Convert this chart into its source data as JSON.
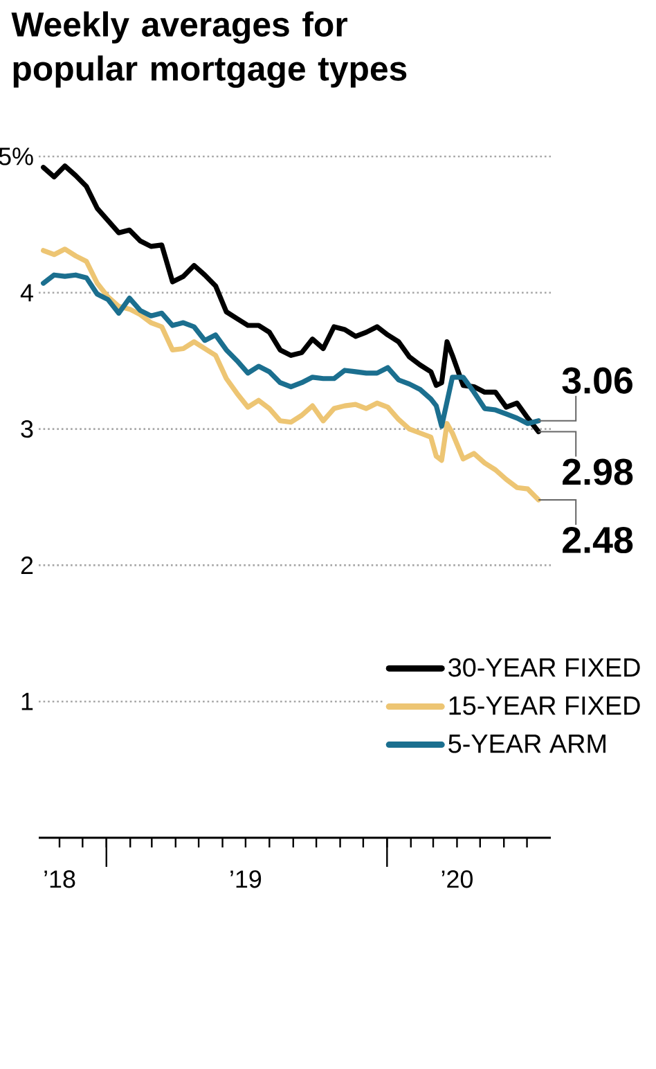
{
  "chart_data": {
    "type": "line",
    "title": "Weekly averages for popular mortgage types",
    "x": [
      "2018-10-11",
      "2018-10-25",
      "2018-11-08",
      "2018-11-22",
      "2018-12-06",
      "2018-12-20",
      "2019-01-03",
      "2019-01-17",
      "2019-01-31",
      "2019-02-14",
      "2019-02-28",
      "2019-03-14",
      "2019-03-28",
      "2019-04-11",
      "2019-04-25",
      "2019-05-09",
      "2019-05-23",
      "2019-06-06",
      "2019-06-20",
      "2019-07-04",
      "2019-07-18",
      "2019-08-01",
      "2019-08-15",
      "2019-08-29",
      "2019-09-12",
      "2019-09-26",
      "2019-10-10",
      "2019-10-24",
      "2019-11-07",
      "2019-11-21",
      "2019-12-05",
      "2019-12-19",
      "2020-01-02",
      "2020-01-16",
      "2020-01-30",
      "2020-02-13",
      "2020-02-27",
      "2020-03-05",
      "2020-03-12",
      "2020-03-19",
      "2020-03-26",
      "2020-04-09",
      "2020-04-23",
      "2020-05-07",
      "2020-05-21",
      "2020-06-04",
      "2020-06-18",
      "2020-07-02",
      "2020-07-16"
    ],
    "series": [
      {
        "name": "30-YEAR FIXED",
        "color": "#000000",
        "values": [
          4.92,
          4.85,
          4.93,
          4.86,
          4.78,
          4.62,
          4.53,
          4.44,
          4.46,
          4.38,
          4.34,
          4.35,
          4.08,
          4.12,
          4.2,
          4.13,
          4.05,
          3.86,
          3.81,
          3.76,
          3.76,
          3.71,
          3.58,
          3.54,
          3.56,
          3.66,
          3.59,
          3.75,
          3.73,
          3.68,
          3.71,
          3.75,
          3.69,
          3.64,
          3.53,
          3.47,
          3.42,
          3.32,
          3.34,
          3.64,
          3.54,
          3.32,
          3.31,
          3.27,
          3.27,
          3.16,
          3.19,
          3.08,
          2.98
        ],
        "value_labels": [
          null,
          null,
          null,
          null,
          null,
          null,
          null,
          null,
          null,
          null,
          null,
          null,
          null,
          null,
          null,
          null,
          null,
          null,
          null,
          null,
          null,
          null,
          null,
          null,
          null,
          null,
          null,
          null,
          null,
          null,
          null,
          null,
          null,
          null,
          null,
          null,
          null,
          null,
          null,
          null,
          null,
          null,
          null,
          null,
          null,
          null,
          null,
          null,
          "2.98"
        ]
      },
      {
        "name": "15-YEAR FIXED",
        "color": "#edc573",
        "values": [
          4.31,
          4.28,
          4.32,
          4.27,
          4.23,
          4.07,
          3.97,
          3.9,
          3.88,
          3.84,
          3.78,
          3.75,
          3.58,
          3.59,
          3.64,
          3.59,
          3.54,
          3.37,
          3.26,
          3.16,
          3.21,
          3.15,
          3.06,
          3.05,
          3.1,
          3.17,
          3.06,
          3.15,
          3.17,
          3.18,
          3.15,
          3.19,
          3.16,
          3.07,
          3.0,
          2.97,
          2.94,
          2.8,
          2.77,
          3.04,
          2.97,
          2.78,
          2.82,
          2.75,
          2.7,
          2.63,
          2.57,
          2.56,
          2.48
        ],
        "value_labels": [
          null,
          null,
          null,
          null,
          null,
          null,
          null,
          null,
          null,
          null,
          null,
          null,
          null,
          null,
          null,
          null,
          null,
          null,
          null,
          null,
          null,
          null,
          null,
          null,
          null,
          null,
          null,
          null,
          null,
          null,
          null,
          null,
          null,
          null,
          null,
          null,
          null,
          null,
          null,
          null,
          null,
          null,
          null,
          null,
          null,
          null,
          null,
          null,
          "2.48"
        ]
      },
      {
        "name": "5-YEAR ARM",
        "color": "#1b6f8f",
        "values": [
          4.07,
          4.13,
          4.12,
          4.13,
          4.11,
          3.99,
          3.95,
          3.85,
          3.96,
          3.87,
          3.83,
          3.85,
          3.76,
          3.78,
          3.75,
          3.65,
          3.69,
          3.58,
          3.5,
          3.41,
          3.46,
          3.42,
          3.34,
          3.31,
          3.34,
          3.38,
          3.37,
          3.37,
          3.43,
          3.42,
          3.41,
          3.41,
          3.45,
          3.36,
          3.33,
          3.29,
          3.22,
          3.17,
          3.02,
          3.2,
          3.38,
          3.38,
          3.27,
          3.15,
          3.14,
          3.11,
          3.08,
          3.04,
          3.06
        ],
        "value_labels": [
          null,
          null,
          null,
          null,
          null,
          null,
          null,
          null,
          null,
          null,
          null,
          null,
          null,
          null,
          null,
          null,
          null,
          null,
          null,
          null,
          null,
          null,
          null,
          null,
          null,
          null,
          null,
          null,
          null,
          null,
          null,
          null,
          null,
          null,
          null,
          null,
          null,
          null,
          null,
          null,
          null,
          null,
          null,
          null,
          null,
          null,
          null,
          null,
          "3.06"
        ]
      }
    ],
    "xlim": [
      "2018-10-05",
      "2020-08-01"
    ],
    "xticks": [
      {
        "value": "2018-11-01",
        "label": "’18"
      },
      {
        "value": "2018-12-01",
        "label": null
      },
      {
        "value": "2019-01-01",
        "label": null
      },
      {
        "value": "2019-02-01",
        "label": null
      },
      {
        "value": "2019-03-01",
        "label": null
      },
      {
        "value": "2019-04-01",
        "label": null
      },
      {
        "value": "2019-05-01",
        "label": null
      },
      {
        "value": "2019-06-01",
        "label": null
      },
      {
        "value": "2019-07-01",
        "label": "’19"
      },
      {
        "value": "2019-08-01",
        "label": null
      },
      {
        "value": "2019-09-01",
        "label": null
      },
      {
        "value": "2019-10-01",
        "label": null
      },
      {
        "value": "2019-11-01",
        "label": null
      },
      {
        "value": "2019-12-01",
        "label": null
      },
      {
        "value": "2020-01-01",
        "label": null
      },
      {
        "value": "2020-02-01",
        "label": null
      },
      {
        "value": "2020-03-01",
        "label": null
      },
      {
        "value": "2020-04-01",
        "label": "’20"
      },
      {
        "value": "2020-05-01",
        "label": null
      },
      {
        "value": "2020-06-01",
        "label": null
      },
      {
        "value": "2020-07-01",
        "label": null
      }
    ],
    "ylim": [
      0,
      5
    ],
    "yticks": [
      1,
      2,
      3,
      4,
      {
        "value": 5,
        "label": "5%"
      }
    ],
    "grid": "y",
    "legend": "bottom right"
  }
}
